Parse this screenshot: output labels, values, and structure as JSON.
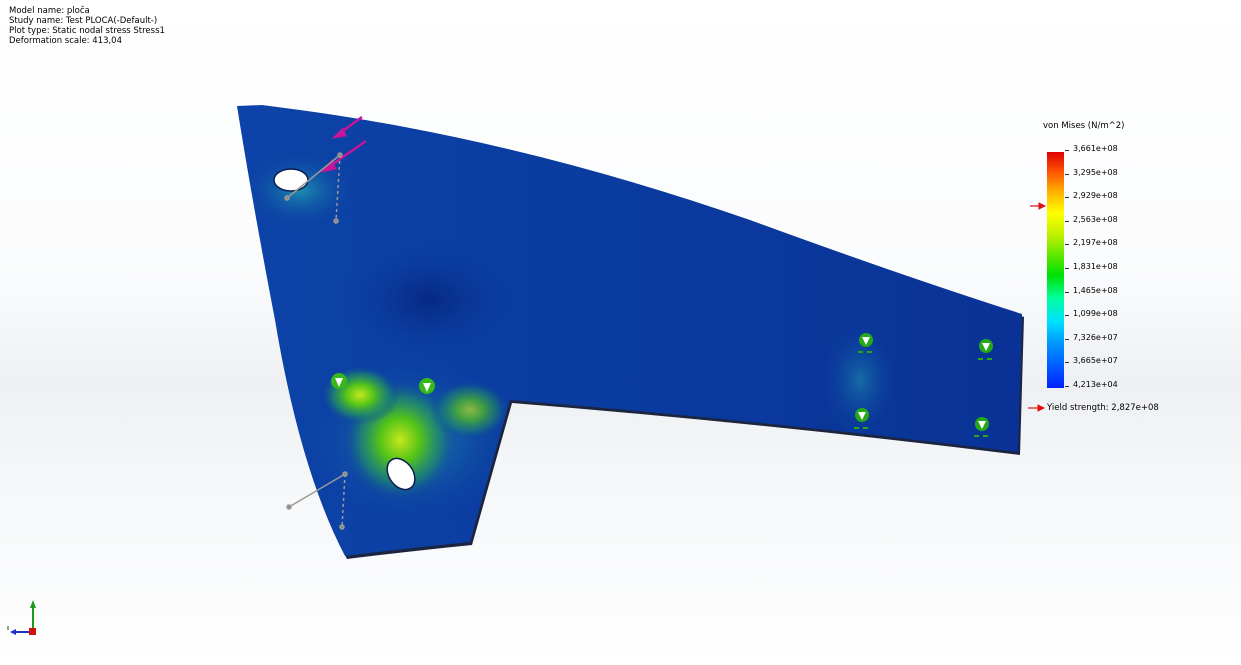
{
  "info": {
    "model_name": "Model name: ploča",
    "study_name": "Study name: Test PLOCA(-Default-)",
    "plot_type": "Plot type: Static nodal stress Stress1",
    "deformation_scale": "Deformation scale: 413,04"
  },
  "legend": {
    "title": "von Mises (N/m^2)",
    "ticks": [
      "3,661e+08",
      "3,295e+08",
      "2,929e+08",
      "2,563e+08",
      "2,197e+08",
      "1,831e+08",
      "1,465e+08",
      "1,099e+08",
      "7,326e+07",
      "3,665e+07",
      "4,213e+04"
    ],
    "yield_label": "Yield strength: 2,827e+08",
    "marker_color": "#e01010"
  },
  "colors": {
    "plate_base": "#0b3aa0",
    "plate_dark": "#072a86",
    "stress_green": "#4cc21a",
    "stress_yellow": "#b4e31a",
    "load_arrow": "#c5159b",
    "triad_y": "#1a9a1a",
    "triad_x": "#2030c0",
    "triad_z": "#d01010"
  }
}
